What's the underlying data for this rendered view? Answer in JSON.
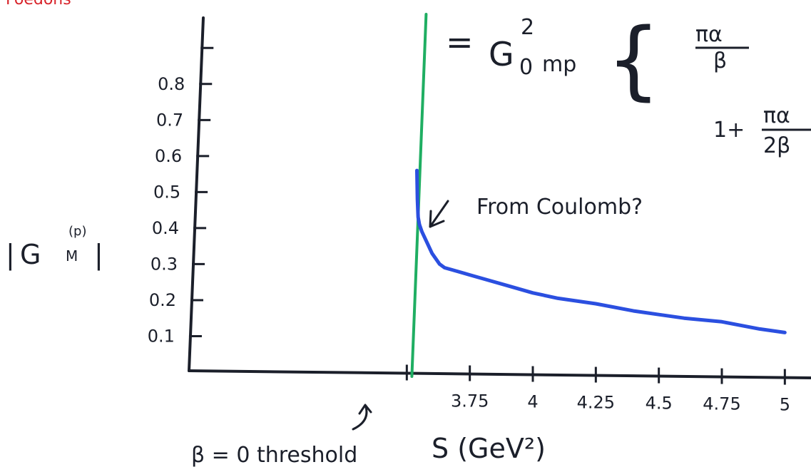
{
  "corner_text": "Foedons",
  "formula": {
    "lhs": "=",
    "main": "G",
    "superscript": "2",
    "subscript": "0",
    "mp": "mp",
    "brace": "{",
    "fraction_top_num": "πα",
    "fraction_top_den": "β",
    "denominator_prefix": "1+",
    "fraction_bottom_num": "πα",
    "fraction_bottom_den": "2β"
  },
  "annotation": {
    "text": "From Coulomb?",
    "arrow_icon": "arrow-down-left-icon"
  },
  "threshold": {
    "label": "β = 0 threshold",
    "arrow_icon": "curved-arrow-up-icon"
  },
  "colors": {
    "curve": "#2b4fe0",
    "threshold_line": "#1fae62",
    "axes": "#1b1f2a",
    "red_text": "#d8232a"
  },
  "chart_data": {
    "type": "line",
    "title": "",
    "xlabel": "S (GeV²)",
    "ylabel": "|G_M^(p)|",
    "ylabel_parts": {
      "main": "G",
      "sub": "M",
      "sup": "(p)"
    },
    "x_ticks": [
      {
        "value": 3.5,
        "label": ""
      },
      {
        "value": 3.75,
        "label": "3.75"
      },
      {
        "value": 4.0,
        "label": "4"
      },
      {
        "value": 4.25,
        "label": "4.25"
      },
      {
        "value": 4.5,
        "label": "4.5"
      },
      {
        "value": 4.75,
        "label": "4.75"
      },
      {
        "value": 5.0,
        "label": "5"
      }
    ],
    "y_ticks": [
      {
        "value": 0.1,
        "label": "0.1"
      },
      {
        "value": 0.2,
        "label": "0.2"
      },
      {
        "value": 0.3,
        "label": "0.3"
      },
      {
        "value": 0.4,
        "label": "0.4"
      },
      {
        "value": 0.5,
        "label": "0.5"
      },
      {
        "value": 0.6,
        "label": "0.6"
      },
      {
        "value": 0.7,
        "label": "0.7"
      },
      {
        "value": 0.8,
        "label": "0.8"
      },
      {
        "value": 0.9,
        "label": ""
      }
    ],
    "xlim": [
      2.65,
      5.05
    ],
    "ylim": [
      0,
      0.95
    ],
    "grid": false,
    "threshold_x": 3.52,
    "series": [
      {
        "x": [
          3.54,
          3.542,
          3.545,
          3.55,
          3.56,
          3.58,
          3.6,
          3.63,
          3.65,
          3.7,
          3.75,
          3.8,
          3.9,
          4.0,
          4.1,
          4.25,
          4.4,
          4.5,
          4.6,
          4.75,
          4.9,
          5.0
        ],
        "y": [
          0.56,
          0.48,
          0.43,
          0.41,
          0.39,
          0.36,
          0.33,
          0.3,
          0.29,
          0.28,
          0.27,
          0.26,
          0.24,
          0.22,
          0.205,
          0.19,
          0.17,
          0.16,
          0.15,
          0.14,
          0.12,
          0.11
        ]
      }
    ]
  }
}
